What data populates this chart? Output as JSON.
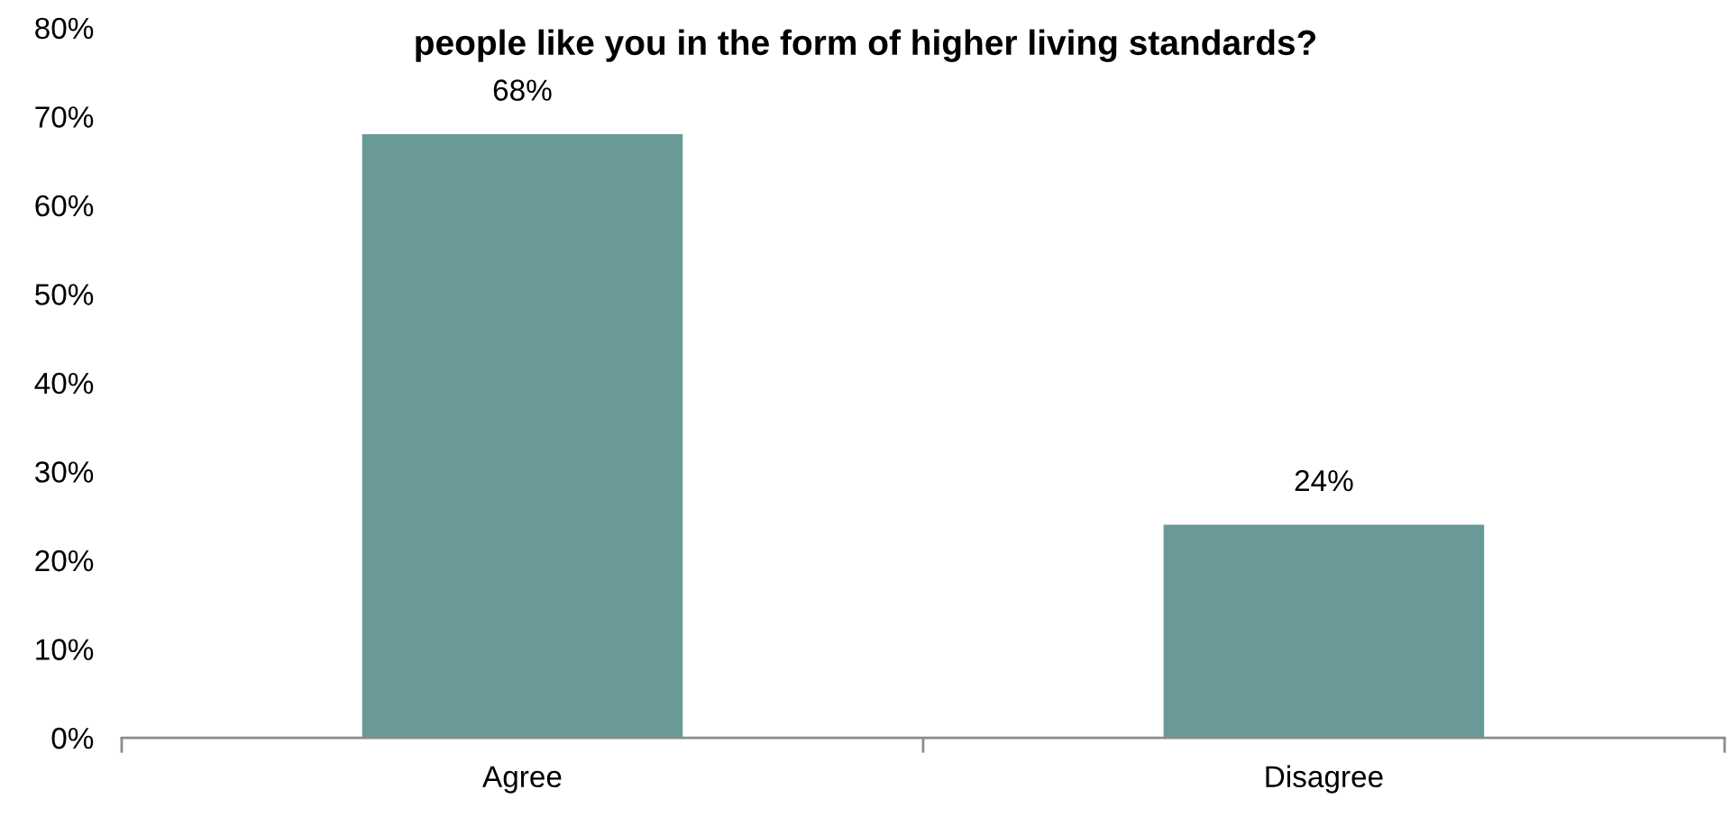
{
  "chart_data": {
    "type": "bar",
    "title": "people like you in the form of higher living standards?",
    "categories": [
      "Agree",
      "Disagree"
    ],
    "values": [
      68,
      24
    ],
    "color": "#6a9a98",
    "data_labels": true,
    "value_labels": [
      "68%",
      "24%"
    ],
    "ylim": [
      0,
      80
    ],
    "yticks": [
      {
        "value": 0,
        "label": "0%"
      },
      {
        "value": 10,
        "label": "10%"
      },
      {
        "value": 20,
        "label": "20%"
      },
      {
        "value": 30,
        "label": "30%"
      },
      {
        "value": 40,
        "label": "40%"
      },
      {
        "value": 50,
        "label": "50%"
      },
      {
        "value": 60,
        "label": "60%"
      },
      {
        "value": 70,
        "label": "70%"
      },
      {
        "value": 80,
        "label": "80%"
      }
    ],
    "grid": false,
    "legend": false
  }
}
